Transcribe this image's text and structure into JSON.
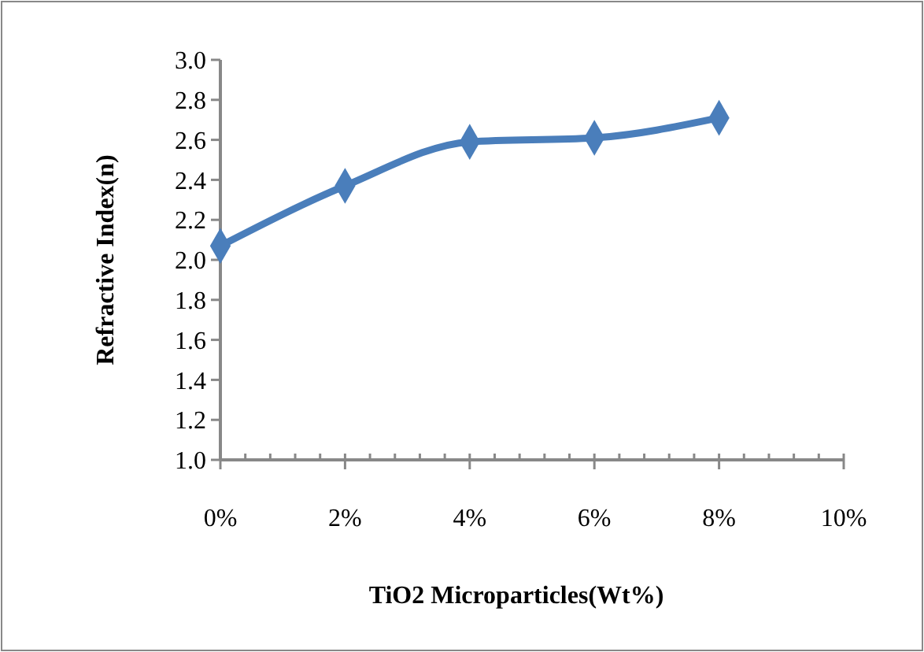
{
  "chart_data": {
    "type": "line",
    "xlabel": "TiO2 Microparticles(Wt%)",
    "ylabel": "Refractive Index(n)",
    "x": [
      0,
      2,
      4,
      6,
      8
    ],
    "series": [
      {
        "color": "#4a7ebb",
        "values": [
          2.07,
          2.37,
          2.59,
          2.61,
          2.71
        ]
      }
    ],
    "xlim": [
      0,
      10
    ],
    "xticks": [
      {
        "value": 0,
        "label": "0%"
      },
      {
        "value": 0.4,
        "label": null
      },
      {
        "value": 0.8,
        "label": null
      },
      {
        "value": 1.2,
        "label": null
      },
      {
        "value": 1.6,
        "label": null
      },
      {
        "value": 2,
        "label": "2%"
      },
      {
        "value": 2.4,
        "label": null
      },
      {
        "value": 2.8,
        "label": null
      },
      {
        "value": 3.2,
        "label": null
      },
      {
        "value": 3.6,
        "label": null
      },
      {
        "value": 4,
        "label": "4%"
      },
      {
        "value": 4.4,
        "label": null
      },
      {
        "value": 4.8,
        "label": null
      },
      {
        "value": 5.2,
        "label": null
      },
      {
        "value": 5.6,
        "label": null
      },
      {
        "value": 6,
        "label": "6%"
      },
      {
        "value": 6.4,
        "label": null
      },
      {
        "value": 6.8,
        "label": null
      },
      {
        "value": 7.2,
        "label": null
      },
      {
        "value": 7.6,
        "label": null
      },
      {
        "value": 8,
        "label": "8%"
      },
      {
        "value": 8.4,
        "label": null
      },
      {
        "value": 8.8,
        "label": null
      },
      {
        "value": 9.2,
        "label": null
      },
      {
        "value": 9.6,
        "label": null
      },
      {
        "value": 10,
        "label": "10%"
      }
    ],
    "ylim": [
      1.0,
      3.0
    ],
    "yticks": [
      {
        "value": 1.0,
        "label": "1.0"
      },
      {
        "value": 1.2,
        "label": "1.2"
      },
      {
        "value": 1.4,
        "label": "1.4"
      },
      {
        "value": 1.6,
        "label": "1.6"
      },
      {
        "value": 1.8,
        "label": "1.8"
      },
      {
        "value": 2.0,
        "label": "2.0"
      },
      {
        "value": 2.2,
        "label": "2.2"
      },
      {
        "value": 2.4,
        "label": "2.4"
      },
      {
        "value": 2.6,
        "label": "2.6"
      },
      {
        "value": 2.8,
        "label": "2.8"
      },
      {
        "value": 3.0,
        "label": "3.0"
      }
    ],
    "grid": false,
    "marker": "diamond",
    "line_style": "solid"
  }
}
